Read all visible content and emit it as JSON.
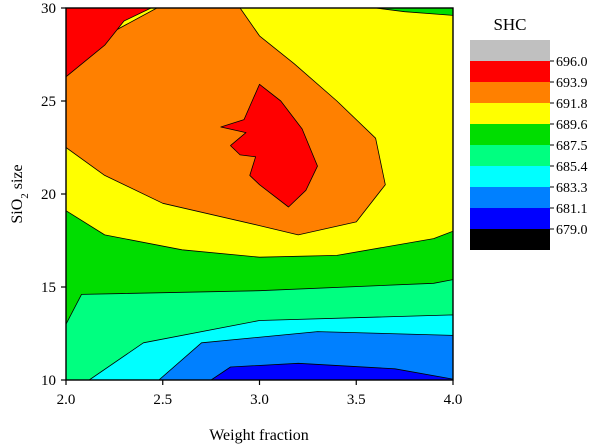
{
  "chart_data": {
    "type": "heatmap",
    "subtype": "filled-contour",
    "xlabel": "Weight fraction",
    "ylabel_main": "SiO",
    "ylabel_sub": "2",
    "ylabel_tail": " size",
    "xlim": [
      2.0,
      4.0
    ],
    "ylim": [
      10,
      30
    ],
    "xticks": [
      "2.0",
      "2.5",
      "3.0",
      "3.5",
      "4.0"
    ],
    "xtick_values": [
      2.0,
      2.5,
      3.0,
      3.5,
      4.0
    ],
    "yticks": [
      "10",
      "15",
      "20",
      "25",
      "30"
    ],
    "ytick_values": [
      10,
      15,
      20,
      25,
      30
    ],
    "legend": {
      "title": "SHC",
      "placement": "right",
      "levels": [
        "696.0",
        "693.9",
        "691.8",
        "689.6",
        "687.5",
        "685.4",
        "683.3",
        "681.1",
        "679.0"
      ],
      "colors": [
        "#c0c0c0",
        "#ff0000",
        "#ff8000",
        "#ffff00",
        "#00dd00",
        "#00ff80",
        "#00ffff",
        "#0080ff",
        "#0000ff",
        "#000000"
      ]
    },
    "bands": [
      {
        "color": "#00ff80",
        "points": [
          [
            2.0,
            15.5
          ],
          [
            2.0,
            10
          ],
          [
            4.0,
            10
          ],
          [
            4.0,
            15.5
          ]
        ]
      },
      {
        "color": "#00ffff",
        "points": [
          [
            2.12,
            10
          ],
          [
            2.4,
            12.0
          ],
          [
            3.0,
            13.2
          ],
          [
            4.0,
            13.5
          ],
          [
            4.0,
            10
          ]
        ]
      },
      {
        "color": "#0080ff",
        "points": [
          [
            2.48,
            10
          ],
          [
            2.7,
            12.0
          ],
          [
            3.3,
            12.6
          ],
          [
            4.0,
            12.4
          ],
          [
            4.0,
            10
          ]
        ]
      },
      {
        "color": "#0000ff",
        "points": [
          [
            2.75,
            10
          ],
          [
            2.85,
            10.7
          ],
          [
            3.2,
            10.9
          ],
          [
            3.7,
            10.6
          ],
          [
            4.0,
            10.05
          ],
          [
            4.0,
            10
          ]
        ]
      },
      {
        "color": "#00dd00",
        "points": [
          [
            2.0,
            13.0
          ],
          [
            2.08,
            14.6
          ],
          [
            3.0,
            14.8
          ],
          [
            3.9,
            15.2
          ],
          [
            4.0,
            15.4
          ],
          [
            4.0,
            30
          ],
          [
            2.0,
            30
          ]
        ]
      },
      {
        "color": "#ffff00",
        "points": [
          [
            2.0,
            19.1
          ],
          [
            2.2,
            17.8
          ],
          [
            2.6,
            17.0
          ],
          [
            3.0,
            16.6
          ],
          [
            3.4,
            16.7
          ],
          [
            3.9,
            17.6
          ],
          [
            4.0,
            18.0
          ],
          [
            4.0,
            29.6
          ],
          [
            3.75,
            29.8
          ],
          [
            3.6,
            30
          ],
          [
            2.0,
            30
          ]
        ]
      },
      {
        "color": "#ff8000",
        "points": [
          [
            2.0,
            22.5
          ],
          [
            2.2,
            21.0
          ],
          [
            2.5,
            19.5
          ],
          [
            3.0,
            18.3
          ],
          [
            3.2,
            17.8
          ],
          [
            3.5,
            18.5
          ],
          [
            3.65,
            20.5
          ],
          [
            3.6,
            23.0
          ],
          [
            3.4,
            25.0
          ],
          [
            3.18,
            27.0
          ],
          [
            3.0,
            28.5
          ],
          [
            2.9,
            30
          ],
          [
            2.47,
            30
          ],
          [
            2.15,
            28.2
          ],
          [
            2.0,
            27.0
          ]
        ]
      },
      {
        "color": "#ff0000",
        "points": [
          [
            2.0,
            26.3
          ],
          [
            2.2,
            28.0
          ],
          [
            2.3,
            29.3
          ],
          [
            2.44,
            30
          ],
          [
            2.0,
            30
          ]
        ]
      },
      {
        "color": "#ff0000",
        "points": [
          [
            2.92,
            24.0
          ],
          [
            3.0,
            25.9
          ],
          [
            3.11,
            25.0
          ],
          [
            3.22,
            23.5
          ],
          [
            3.3,
            21.5
          ],
          [
            3.24,
            20.2
          ],
          [
            3.15,
            19.3
          ],
          [
            3.0,
            20.5
          ],
          [
            2.95,
            21.0
          ],
          [
            2.98,
            22.0
          ],
          [
            2.9,
            22.1
          ],
          [
            2.85,
            22.6
          ],
          [
            2.93,
            23.3
          ],
          [
            2.8,
            23.6
          ]
        ]
      }
    ]
  }
}
